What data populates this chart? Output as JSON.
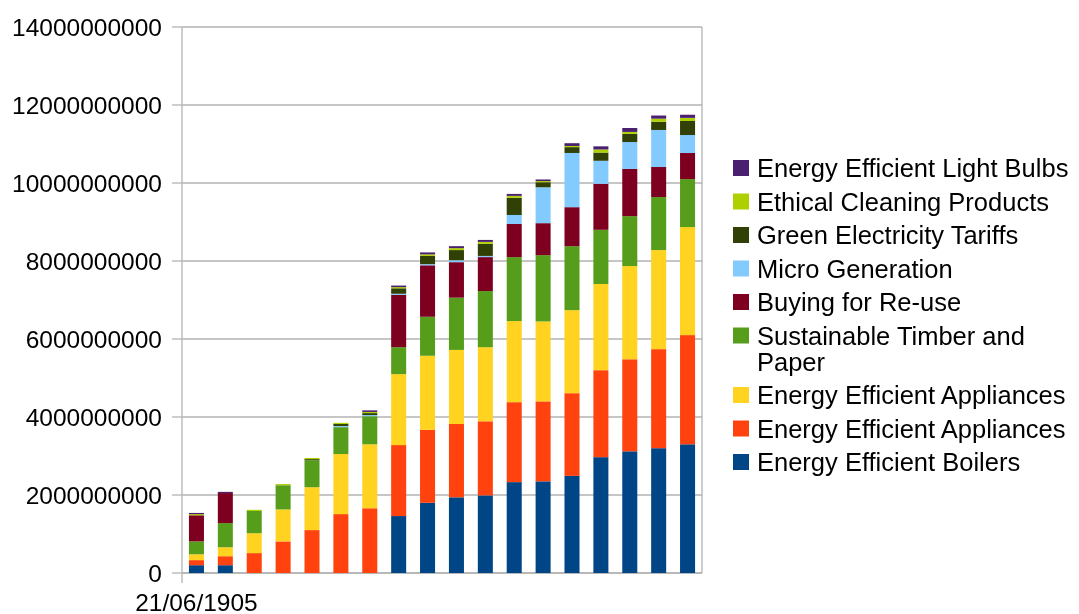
{
  "chart_data": {
    "type": "bar",
    "stacked": true,
    "categories": [
      "21/06/1905",
      null,
      null,
      null,
      null,
      null,
      null,
      null,
      null,
      null,
      null,
      null,
      null,
      null,
      null,
      null,
      null,
      null
    ],
    "series": [
      {
        "name": "Energy Efficient Boilers",
        "color": "#004586",
        "values": [
          200000000,
          200000000,
          null,
          null,
          null,
          null,
          null,
          1460000000,
          1800000000,
          1940000000,
          1990000000,
          2330000000,
          2350000000,
          2490000000,
          2970000000,
          3120000000,
          3200000000,
          3300000000
        ]
      },
      {
        "name": "Energy Efficient Appliances",
        "color": "#ff420e",
        "values": [
          130000000,
          230000000,
          510000000,
          810000000,
          1100000000,
          1510000000,
          1660000000,
          1820000000,
          1870000000,
          1880000000,
          1900000000,
          2050000000,
          2050000000,
          2120000000,
          2230000000,
          2360000000,
          2540000000,
          2800000000
        ]
      },
      {
        "name": "Energy Efficient Appliances",
        "color": "#ffd320",
        "values": [
          150000000,
          230000000,
          510000000,
          820000000,
          1100000000,
          1540000000,
          1640000000,
          1820000000,
          1900000000,
          1900000000,
          1900000000,
          2080000000,
          2050000000,
          2130000000,
          2210000000,
          2390000000,
          2540000000,
          2770000000
        ]
      },
      {
        "name": "Sustainable Timber and Paper",
        "color": "#579d1c",
        "values": [
          330000000,
          620000000,
          570000000,
          620000000,
          690000000,
          690000000,
          720000000,
          690000000,
          1000000000,
          1340000000,
          1440000000,
          1640000000,
          1700000000,
          1640000000,
          1390000000,
          1280000000,
          1360000000,
          1230000000
        ]
      },
      {
        "name": "Buying for Re-use",
        "color": "#7e0021",
        "values": [
          670000000,
          770000000,
          null,
          null,
          null,
          null,
          null,
          1340000000,
          1320000000,
          910000000,
          870000000,
          850000000,
          820000000,
          1000000000,
          1180000000,
          1210000000,
          770000000,
          670000000
        ]
      },
      {
        "name": "Micro Generation",
        "color": "#83caff",
        "values": [
          null,
          null,
          null,
          null,
          null,
          30000000,
          30000000,
          30000000,
          30000000,
          50000000,
          30000000,
          230000000,
          920000000,
          1390000000,
          590000000,
          690000000,
          950000000,
          460000000
        ]
      },
      {
        "name": "Green Electricity Tariffs",
        "color": "#314004",
        "values": [
          null,
          null,
          null,
          null,
          30000000,
          50000000,
          50000000,
          140000000,
          210000000,
          260000000,
          310000000,
          440000000,
          130000000,
          150000000,
          210000000,
          210000000,
          210000000,
          360000000
        ]
      },
      {
        "name": "Ethical Cleaning Products",
        "color": "#aecf00",
        "values": [
          30000000,
          null,
          30000000,
          30000000,
          30000000,
          30000000,
          30000000,
          30000000,
          40000000,
          50000000,
          50000000,
          50000000,
          30000000,
          30000000,
          80000000,
          50000000,
          80000000,
          80000000
        ]
      },
      {
        "name": "Energy Efficient Light Bulbs",
        "color": "#4b1f6f",
        "values": [
          30000000,
          30000000,
          null,
          null,
          null,
          null,
          40000000,
          40000000,
          50000000,
          50000000,
          50000000,
          50000000,
          40000000,
          70000000,
          80000000,
          100000000,
          80000000,
          80000000
        ]
      }
    ],
    "ylim": [
      0,
      14000000000
    ],
    "yticks": [
      0,
      2000000000,
      4000000000,
      6000000000,
      8000000000,
      10000000000,
      12000000000,
      14000000000
    ],
    "grid": "y",
    "legend": "right"
  }
}
